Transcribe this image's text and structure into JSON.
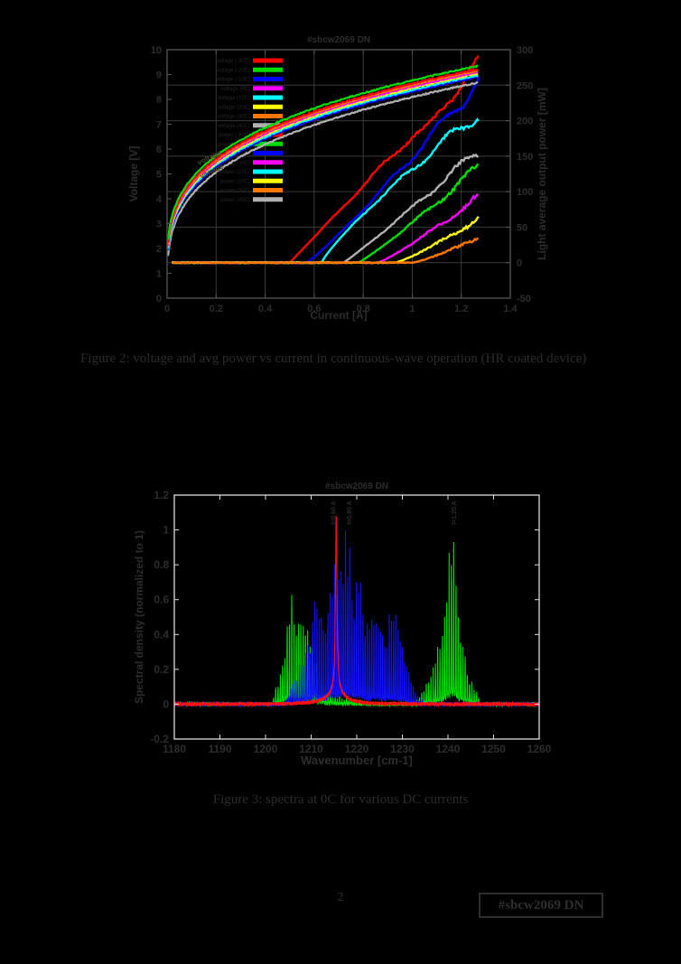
{
  "page": {
    "number": "2",
    "tag": "#sbcw2069 DN",
    "background": "#000000",
    "text_color": "#2c2c2c"
  },
  "figures": {
    "fig2_caption": "Figure 2: voltage and avg power vs current in continuous-wave operation (HR coated device)",
    "fig3_caption": "Figure 3: spectra at 0C for various DC currents"
  },
  "chart_data": [
    {
      "type": "line",
      "title": "#sbcw2069 DN",
      "xlabel": "Current [A]",
      "ylabel_left": "Voltage [V]",
      "ylabel_right": "Light average output power [mW]",
      "xlim": [
        0,
        1.4
      ],
      "ylim_left": [
        0,
        10
      ],
      "ylim_right": [
        -50,
        300
      ],
      "x_ticks": [
        0,
        0.2,
        0.4,
        0.6,
        0.8,
        1,
        1.2,
        1.4
      ],
      "y_ticks_left": [
        0,
        1,
        2,
        3,
        4,
        5,
        6,
        7,
        8,
        9,
        10
      ],
      "y_ticks_right": [
        -50,
        0,
        50,
        100,
        150,
        200,
        250,
        300
      ],
      "grid": true,
      "grid_color": "#3b3b3b",
      "spine_color": "#565656",
      "text_color": "#2d2d2d",
      "i_max": 1.27,
      "legend": {
        "position": "upper-left",
        "entries": [
          {
            "label": "voltage (-30C)",
            "color": "#ff0000"
          },
          {
            "label": "voltage (-20C)",
            "color": "#00dd00"
          },
          {
            "label": "voltage (-10C)",
            "color": "#0000ff"
          },
          {
            "label": "voltage (0C)",
            "color": "#ff00ff"
          },
          {
            "label": "voltage (10C)",
            "color": "#00ffff"
          },
          {
            "label": "voltage (20C)",
            "color": "#ffff00"
          },
          {
            "label": "voltage (30C)",
            "color": "#ff7700"
          },
          {
            "label": "voltage (40C)",
            "color": "#b0b0b0"
          },
          {
            "label": "power (-30C)",
            "color": "#ff0000"
          },
          {
            "label": "power (-20C)",
            "color": "#00dd00"
          },
          {
            "label": "power (-10C)",
            "color": "#0000ff"
          },
          {
            "label": "power (0C)",
            "color": "#ff00ff"
          },
          {
            "label": "power (10C)",
            "color": "#00ffff"
          },
          {
            "label": "power (20C)",
            "color": "#ffff00"
          },
          {
            "label": "power (30C)",
            "color": "#ff7700"
          },
          {
            "label": "power (40C)",
            "color": "#b0b0b0"
          }
        ]
      },
      "annotations": [
        {
          "text": "voltage",
          "x": 0.13,
          "y": 5.35,
          "rotation": -26
        },
        {
          "text": "voltage",
          "x": 0.14,
          "y": 4.8,
          "rotation": -26
        }
      ],
      "voltage_series": [
        {
          "color": "#b0b0b0",
          "offset": 0.18,
          "scale": 8.5,
          "exp": 0.3
        },
        {
          "color": "#0000ff",
          "offset": 0.4,
          "scale": 8.5,
          "exp": 0.3
        },
        {
          "color": "#00ffff",
          "offset": 0.47,
          "scale": 8.5,
          "exp": 0.3
        },
        {
          "color": "#ffff00",
          "offset": 0.54,
          "scale": 8.5,
          "exp": 0.3
        },
        {
          "color": "#ff00ff",
          "offset": 0.6,
          "scale": 8.5,
          "exp": 0.3
        },
        {
          "color": "#ff7700",
          "offset": 0.66,
          "scale": 8.5,
          "exp": 0.3
        },
        {
          "color": "#ff0000",
          "offset": 0.72,
          "scale": 8.5,
          "exp": 0.3
        },
        {
          "color": "#00dd00",
          "offset": 0.85,
          "scale": 8.5,
          "exp": 0.3
        }
      ],
      "power_series": [
        {
          "color": "#ff0000",
          "threshold": 0.5,
          "p_end": 278,
          "exp": 1.0,
          "dip": {
            "center": 1.07,
            "depth": 16,
            "width": 0.05
          }
        },
        {
          "color": "#0000ff",
          "threshold": 0.57,
          "p_end": 255,
          "exp": 1.1
        },
        {
          "color": "#00ffff",
          "threshold": 0.63,
          "p_end": 210,
          "exp": 0.85
        },
        {
          "color": "#b0b0b0",
          "threshold": 0.72,
          "p_end": 158,
          "exp": 1.05
        },
        {
          "color": "#00dd00",
          "threshold": 0.78,
          "p_end": 135,
          "exp": 1.1
        },
        {
          "color": "#ff00ff",
          "threshold": 0.86,
          "p_end": 93,
          "exp": 1.15
        },
        {
          "color": "#ffff00",
          "threshold": 0.93,
          "p_end": 62,
          "exp": 1.2
        },
        {
          "color": "#ff7700",
          "threshold": 1.0,
          "p_end": 36,
          "exp": 1.25
        }
      ]
    },
    {
      "type": "line",
      "title": "#sbcw2069 DN",
      "xlabel": "Wavenumber [cm-1]",
      "ylabel": "Spectral density (normalized to 1)",
      "xlim": [
        1180,
        1260
      ],
      "ylim": [
        -0.2,
        1.2
      ],
      "x_ticks": [
        1180,
        1190,
        1200,
        1210,
        1220,
        1230,
        1240,
        1250,
        1260
      ],
      "y_ticks": [
        -0.2,
        0,
        0.2,
        0.4,
        0.6,
        0.8,
        1,
        1.2
      ],
      "grid": false,
      "spine_color": "#dcdcdc",
      "text_color": "#2d2d2d",
      "series": [
        {
          "name": "spectrum-high-current",
          "color": "#00dd00",
          "clusters": [
            {
              "spacing": 0.5,
              "envelope": [
                [
                  1201.5,
                  0.02
                ],
                [
                  1203.5,
                  0.22
                ],
                [
                  1205.5,
                  0.68
                ],
                [
                  1207,
                  0.5
                ],
                [
                  1208.5,
                  0.56
                ],
                [
                  1210,
                  0.42
                ],
                [
                  1211.5,
                  0.25
                ],
                [
                  1213,
                  0.12
                ],
                [
                  1215,
                  0.06
                ],
                [
                  1218,
                  0.03
                ],
                [
                  1222,
                  0.02
                ]
              ]
            },
            {
              "spacing": 0.5,
              "envelope": [
                [
                  1233,
                  0.02
                ],
                [
                  1235,
                  0.1
                ],
                [
                  1237,
                  0.24
                ],
                [
                  1239,
                  0.5
                ],
                [
                  1240.5,
                  0.95
                ],
                [
                  1241.3,
                  1.15
                ],
                [
                  1242.3,
                  0.55
                ],
                [
                  1244,
                  0.3
                ],
                [
                  1245.5,
                  0.12
                ],
                [
                  1247,
                  0.04
                ]
              ]
            }
          ]
        },
        {
          "name": "spectrum-mid-current",
          "color": "#1111ff",
          "clusters": [
            {
              "spacing": 0.48,
              "envelope": [
                [
                  1204.5,
                  0.02
                ],
                [
                  1207,
                  0.22
                ],
                [
                  1209.5,
                  0.45
                ],
                [
                  1211,
                  0.62
                ],
                [
                  1213,
                  0.5
                ],
                [
                  1214.5,
                  0.9
                ],
                [
                  1216,
                  0.75
                ],
                [
                  1217.7,
                  1.15
                ],
                [
                  1219,
                  0.8
                ],
                [
                  1221,
                  0.72
                ],
                [
                  1222.5,
                  0.48
                ],
                [
                  1224,
                  0.62
                ],
                [
                  1226,
                  0.45
                ],
                [
                  1228,
                  0.6
                ],
                [
                  1229.5,
                  0.45
                ],
                [
                  1231,
                  0.25
                ],
                [
                  1233,
                  0.06
                ],
                [
                  1234.5,
                  0.02
                ]
              ]
            }
          ]
        },
        {
          "name": "spectrum-low-current",
          "color": "#ff1111",
          "peaks": [
            {
              "center": 1215.5,
              "width": 0.2,
              "amp": 1.0
            },
            {
              "center": 1215.5,
              "width": 2.2,
              "amp": 0.07
            }
          ]
        }
      ],
      "annotations": [
        {
          "text": "I=0.60 A",
          "x": 1215.0
        },
        {
          "text": "I=0.90 A",
          "x": 1218.4
        },
        {
          "text": "I=1.20 A",
          "x": 1241.4
        }
      ]
    }
  ]
}
